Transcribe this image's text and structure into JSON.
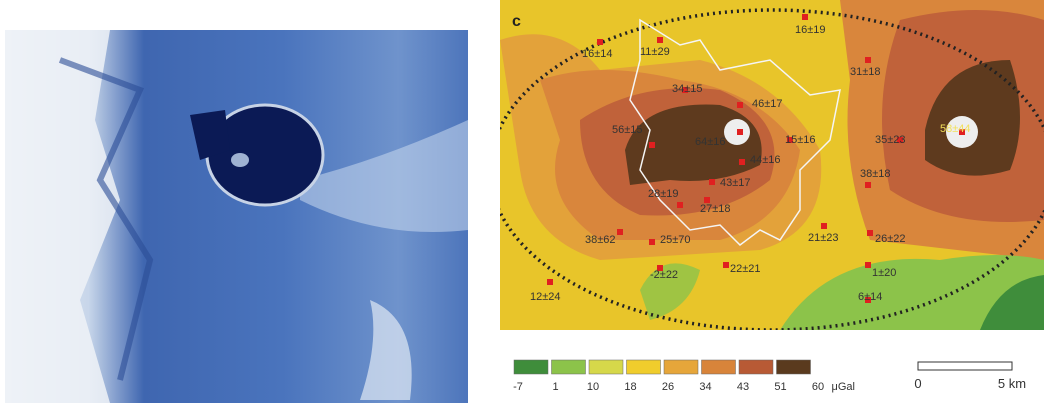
{
  "panel_label": "c",
  "stations": [
    "16±14",
    "11±29",
    "16±19",
    "31±18",
    "34±15",
    "46±17",
    "56±15",
    "64±16",
    "15±16",
    "35±23",
    "58±44",
    "44±16",
    "43±17",
    "38±18",
    "28±19",
    "27±18",
    "38±62",
    "25±70",
    "21±23",
    "26±22",
    "-2±22",
    "22±21",
    "1±20",
    "12±24",
    "6±14"
  ],
  "legend": {
    "labels": [
      "-7",
      "1",
      "10",
      "18",
      "26",
      "34",
      "43",
      "51",
      "60"
    ],
    "unit": "μGal"
  },
  "scale_bar": {
    "start": "0",
    "end": "5 km"
  }
}
